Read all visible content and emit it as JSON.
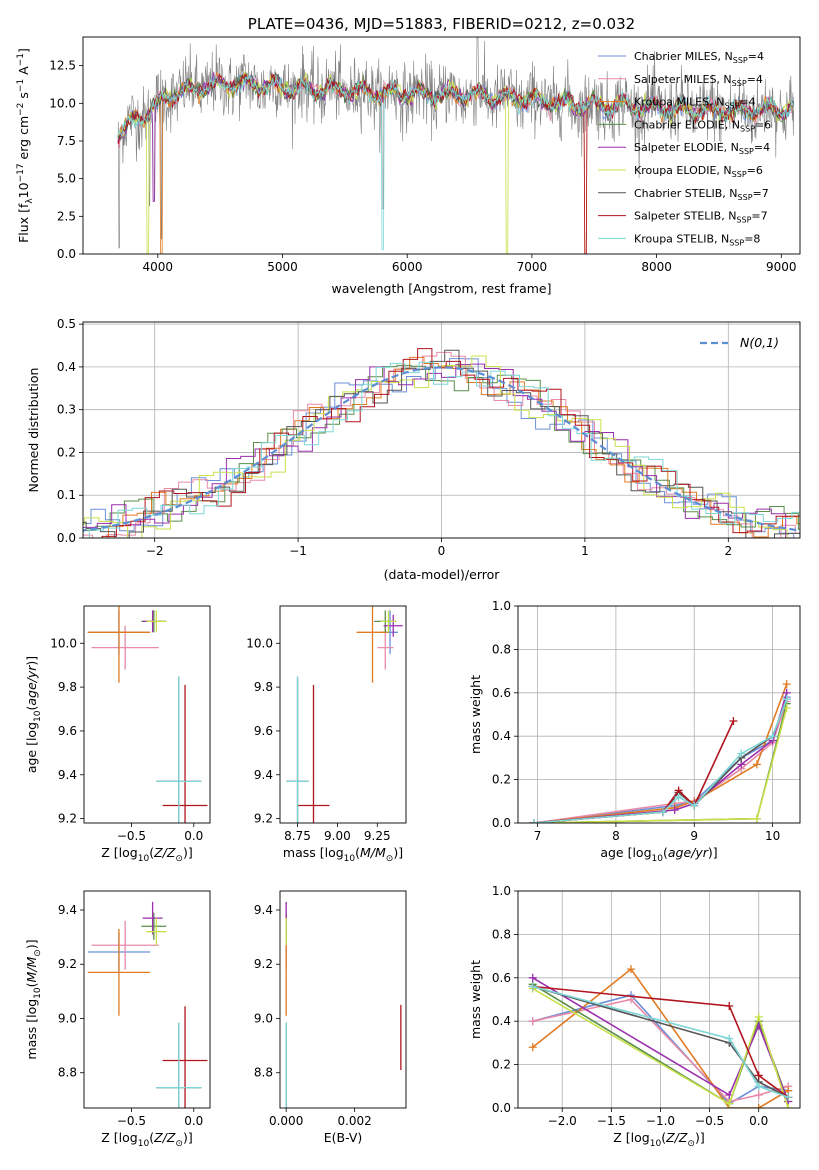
{
  "colors": {
    "chabrier_miles": "#6c8fd8",
    "salpeter_miles": "#e88aa8",
    "kroupa_miles": "#e07b22",
    "chabrier_elodie": "#5a8f4a",
    "salpeter_elodie": "#9b2fae",
    "kroupa_elodie": "#c8e04a",
    "chabrier_stelib": "#555555",
    "salpeter_stelib": "#b0141e",
    "kroupa_stelib": "#7fd6d6",
    "data": "#808080",
    "gauss": "#5b8fd4"
  },
  "models": [
    {
      "key": "chabrier_miles",
      "label": "Chabrier MILES, N",
      "nssp": "=4"
    },
    {
      "key": "salpeter_miles",
      "label": "Salpeter MILES, N",
      "nssp": "=4"
    },
    {
      "key": "kroupa_miles",
      "label": "Kroupa MILES, N",
      "nssp": "=4"
    },
    {
      "key": "chabrier_elodie",
      "label": "Chabrier ELODIE, N",
      "nssp": "=6"
    },
    {
      "key": "salpeter_elodie",
      "label": "Salpeter ELODIE, N",
      "nssp": "=4"
    },
    {
      "key": "kroupa_elodie",
      "label": "Kroupa ELODIE, N",
      "nssp": "=6"
    },
    {
      "key": "chabrier_stelib",
      "label": "Chabrier STELIB, N",
      "nssp": "=7"
    },
    {
      "key": "salpeter_stelib",
      "label": "Salpeter STELIB, N",
      "nssp": "=7"
    },
    {
      "key": "kroupa_stelib",
      "label": "Kroupa STELIB, N",
      "nssp": "=8"
    }
  ],
  "chart_data": [
    {
      "id": "spectrum",
      "type": "line",
      "title": "PLATE=0436, MJD=51883, FIBERID=0212, z=0.032",
      "xlabel": "wavelength [Angstrom, rest frame]",
      "ylabel": "Flux [f",
      "xlim": [
        3400,
        9150
      ],
      "ylim": [
        0,
        14.4
      ],
      "xticks": [
        4000,
        5000,
        6000,
        7000,
        8000,
        9000
      ],
      "yticks": [
        0.0,
        2.5,
        5.0,
        7.5,
        10.0,
        12.5
      ],
      "continuum": [
        [
          3680,
          8.0
        ],
        [
          3800,
          8.8
        ],
        [
          3950,
          9.6
        ],
        [
          4100,
          10.6
        ],
        [
          4300,
          11.0
        ],
        [
          4600,
          11.3
        ],
        [
          5000,
          11.1
        ],
        [
          5400,
          10.9
        ],
        [
          5800,
          10.7
        ],
        [
          6200,
          10.6
        ],
        [
          6600,
          10.5
        ],
        [
          7000,
          10.2
        ],
        [
          7400,
          9.9
        ],
        [
          7800,
          9.8
        ],
        [
          8200,
          9.6
        ],
        [
          8600,
          9.5
        ],
        [
          9000,
          9.6
        ],
        [
          9100,
          9.7
        ]
      ],
      "dips": [
        [
          3934,
          3.2
        ],
        [
          3968,
          3.5
        ],
        [
          4030,
          0.0
        ],
        [
          3920,
          0.0
        ],
        [
          5805,
          0.3
        ],
        [
          6800,
          0.0
        ],
        [
          7430,
          0.0
        ]
      ],
      "grid": false,
      "legend": "top-right"
    },
    {
      "id": "residuals",
      "type": "histogram",
      "xlabel": "(data-model)/error",
      "ylabel": "Normed distribution",
      "xlim": [
        -2.5,
        2.5
      ],
      "ylim": [
        0,
        0.505
      ],
      "xticks": [
        -2,
        -1,
        0,
        1,
        2
      ],
      "yticks": [
        0.0,
        0.1,
        0.2,
        0.3,
        0.4,
        0.5
      ],
      "bin_width": 0.1,
      "legend_entry": "N(0,1)",
      "grid": true
    },
    {
      "id": "age_vs_Z",
      "type": "errorbar",
      "xlabel": "Z [log",
      "ylabel": "age  [log",
      "xlim": [
        -0.88,
        0.13
      ],
      "ylim": [
        9.18,
        10.17
      ],
      "xticks": [
        -0.5,
        0.0
      ],
      "yticks": [
        9.2,
        9.4,
        9.6,
        9.8,
        10.0
      ],
      "points": [
        {
          "key": "chabrier_miles",
          "x": -0.6,
          "y": 10.05,
          "xerr": 0.25,
          "yerr": 0.1
        },
        {
          "key": "salpeter_miles",
          "x": -0.55,
          "y": 9.98,
          "xerr": 0.27,
          "yerr": 0.1
        },
        {
          "key": "kroupa_miles",
          "x": -0.6,
          "y": 10.05,
          "xerr": 0.25,
          "yerr": 0.23
        },
        {
          "key": "chabrier_elodie",
          "x": -0.32,
          "y": 10.1,
          "xerr": 0.1,
          "yerr": 0.05
        },
        {
          "key": "salpeter_elodie",
          "x": -0.33,
          "y": 10.1,
          "xerr": 0.08,
          "yerr": 0.05
        },
        {
          "key": "kroupa_elodie",
          "x": -0.3,
          "y": 10.1,
          "xerr": 0.08,
          "yerr": 0.05
        },
        {
          "key": "chabrier_stelib",
          "x": -0.12,
          "y": 9.37,
          "xerr": 0.18,
          "yerr": 0.47
        },
        {
          "key": "salpeter_stelib",
          "x": -0.07,
          "y": 9.26,
          "xerr": 0.18,
          "yerr": 0.55
        },
        {
          "key": "kroupa_stelib",
          "x": -0.12,
          "y": 9.37,
          "xerr": 0.18,
          "yerr": 0.48
        }
      ]
    },
    {
      "id": "age_vs_mass",
      "type": "errorbar",
      "xlabel": "mass [log",
      "ylabel": "",
      "xlim": [
        8.64,
        9.43
      ],
      "ylim": [
        9.18,
        10.17
      ],
      "xticks": [
        8.75,
        9.0,
        9.25
      ],
      "yticks": [
        9.2,
        9.4,
        9.6,
        9.8,
        10.0
      ],
      "points": [
        {
          "key": "chabrier_miles",
          "x": 9.33,
          "y": 10.05,
          "xerr": 0.05,
          "yerr": 0.1
        },
        {
          "key": "salpeter_miles",
          "x": 9.3,
          "y": 9.98,
          "xerr": 0.05,
          "yerr": 0.1
        },
        {
          "key": "kroupa_miles",
          "x": 9.22,
          "y": 10.05,
          "xerr": 0.1,
          "yerr": 0.23
        },
        {
          "key": "chabrier_elodie",
          "x": 9.3,
          "y": 10.1,
          "xerr": 0.07,
          "yerr": 0.05
        },
        {
          "key": "salpeter_elodie",
          "x": 9.35,
          "y": 10.08,
          "xerr": 0.06,
          "yerr": 0.05
        },
        {
          "key": "kroupa_elodie",
          "x": 9.32,
          "y": 10.1,
          "xerr": 0.05,
          "yerr": 0.05
        },
        {
          "key": "chabrier_stelib",
          "x": 8.75,
          "y": 9.37,
          "xerr": 0.07,
          "yerr": 0.47
        },
        {
          "key": "salpeter_stelib",
          "x": 8.85,
          "y": 9.26,
          "xerr": 0.1,
          "yerr": 0.55
        },
        {
          "key": "kroupa_stelib",
          "x": 8.75,
          "y": 9.37,
          "xerr": 0.07,
          "yerr": 0.48
        }
      ]
    },
    {
      "id": "massweight_vs_age",
      "type": "line",
      "xlabel": "age  [log",
      "ylabel": "mass weight",
      "xlim": [
        6.75,
        10.35
      ],
      "ylim": [
        0,
        1.0
      ],
      "xticks": [
        7,
        8,
        9,
        10
      ],
      "yticks": [
        0.0,
        0.2,
        0.4,
        0.6,
        0.8,
        1.0
      ],
      "grid": true,
      "series": [
        {
          "key": "chabrier_miles",
          "x": [
            6.95,
            8.75,
            9.0,
            9.6,
            10.0,
            10.18
          ],
          "y": [
            0.0,
            0.08,
            0.1,
            0.3,
            0.38,
            0.58
          ]
        },
        {
          "key": "salpeter_miles",
          "x": [
            6.95,
            8.75,
            9.0,
            9.6,
            10.0,
            10.18
          ],
          "y": [
            0.0,
            0.09,
            0.1,
            0.25,
            0.37,
            0.56
          ]
        },
        {
          "key": "kroupa_miles",
          "x": [
            6.95,
            8.75,
            9.0,
            9.8,
            10.18
          ],
          "y": [
            0.0,
            0.07,
            0.1,
            0.27,
            0.64
          ]
        },
        {
          "key": "chabrier_elodie",
          "x": [
            6.95,
            9.8,
            10.18
          ],
          "y": [
            0.0,
            0.02,
            0.55
          ]
        },
        {
          "key": "salpeter_elodie",
          "x": [
            6.95,
            8.75,
            9.0,
            9.6,
            10.0,
            10.18
          ],
          "y": [
            0.0,
            0.06,
            0.09,
            0.27,
            0.38,
            0.6
          ]
        },
        {
          "key": "kroupa_elodie",
          "x": [
            6.95,
            9.8,
            10.18
          ],
          "y": [
            0.0,
            0.02,
            0.53
          ]
        },
        {
          "key": "chabrier_stelib",
          "x": [
            6.95,
            8.6,
            8.8,
            9.0,
            9.6,
            10.0,
            10.18
          ],
          "y": [
            0.0,
            0.05,
            0.14,
            0.08,
            0.3,
            0.4,
            0.57
          ]
        },
        {
          "key": "salpeter_stelib",
          "x": [
            6.95,
            8.6,
            8.8,
            9.0,
            9.5
          ],
          "y": [
            0.0,
            0.05,
            0.15,
            0.08,
            0.47
          ]
        },
        {
          "key": "kroupa_stelib",
          "x": [
            6.95,
            8.6,
            8.8,
            9.0,
            9.6,
            10.0,
            10.18
          ],
          "y": [
            0.0,
            0.05,
            0.12,
            0.08,
            0.32,
            0.4,
            0.57
          ]
        }
      ]
    },
    {
      "id": "mass_vs_Z",
      "type": "errorbar",
      "xlabel": "Z [log",
      "ylabel": "mass [log",
      "xlim": [
        -0.88,
        0.13
      ],
      "ylim": [
        8.67,
        9.47
      ],
      "xticks": [
        -0.5,
        0.0
      ],
      "yticks": [
        8.8,
        9.0,
        9.2,
        9.4
      ],
      "points": [
        {
          "key": "chabrier_miles",
          "x": -0.6,
          "y": 9.245,
          "xerr": 0.25,
          "yerr": 0.07
        },
        {
          "key": "salpeter_miles",
          "x": -0.55,
          "y": 9.27,
          "xerr": 0.27,
          "yerr": 0.09
        },
        {
          "key": "kroupa_miles",
          "x": -0.6,
          "y": 9.17,
          "xerr": 0.25,
          "yerr": 0.16
        },
        {
          "key": "chabrier_elodie",
          "x": -0.32,
          "y": 9.34,
          "xerr": 0.1,
          "yerr": 0.05
        },
        {
          "key": "salpeter_elodie",
          "x": -0.33,
          "y": 9.37,
          "xerr": 0.08,
          "yerr": 0.06
        },
        {
          "key": "kroupa_elodie",
          "x": -0.3,
          "y": 9.32,
          "xerr": 0.08,
          "yerr": 0.05
        },
        {
          "key": "chabrier_stelib",
          "x": -0.12,
          "y": 8.745,
          "xerr": 0.18,
          "yerr": 0.24
        },
        {
          "key": "salpeter_stelib",
          "x": -0.07,
          "y": 8.845,
          "xerr": 0.18,
          "yerr": 0.2
        },
        {
          "key": "kroupa_stelib",
          "x": -0.12,
          "y": 8.745,
          "xerr": 0.18,
          "yerr": 0.24
        }
      ]
    },
    {
      "id": "mass_vs_ebv",
      "type": "errorbar",
      "xlabel": "E(B-V)",
      "ylabel": "",
      "xlim": [
        -0.00018,
        0.0035
      ],
      "ylim": [
        8.67,
        9.47
      ],
      "xticks": [
        0.0,
        0.002
      ],
      "yticks": [
        8.8,
        9.0,
        9.2,
        9.4
      ],
      "points": [
        {
          "key": "chabrier_miles",
          "x": 0.0,
          "y": 9.25,
          "xerr": 0,
          "yerr": 0.07
        },
        {
          "key": "salpeter_miles",
          "x": 0.0,
          "y": 9.27,
          "xerr": 0,
          "yerr": 0.09
        },
        {
          "key": "kroupa_miles",
          "x": 0.0,
          "y": 9.17,
          "xerr": 0,
          "yerr": 0.16
        },
        {
          "key": "chabrier_elodie",
          "x": 0.0,
          "y": 9.34,
          "xerr": 0,
          "yerr": 0.05
        },
        {
          "key": "salpeter_elodie",
          "x": 0.0,
          "y": 9.37,
          "xerr": 0,
          "yerr": 0.06
        },
        {
          "key": "kroupa_elodie",
          "x": 0.0,
          "y": 9.32,
          "xerr": 0,
          "yerr": 0.05
        },
        {
          "key": "chabrier_stelib",
          "x": 0.0,
          "y": 8.745,
          "xerr": 0,
          "yerr": 0.24
        },
        {
          "key": "salpeter_stelib",
          "x": 0.00335,
          "y": 8.93,
          "xerr": 0,
          "yerr": 0.12
        },
        {
          "key": "kroupa_stelib",
          "x": 0.0,
          "y": 8.745,
          "xerr": 0,
          "yerr": 0.24
        }
      ]
    },
    {
      "id": "massweight_vs_Z",
      "type": "line",
      "xlabel": "Z [log",
      "ylabel": "mass weight",
      "xlim": [
        -2.45,
        0.42
      ],
      "ylim": [
        0,
        1.0
      ],
      "xticks": [
        -2.0,
        -1.5,
        -1.0,
        -0.5,
        0.0
      ],
      "yticks": [
        0.0,
        0.2,
        0.4,
        0.6,
        0.8,
        1.0
      ],
      "grid": true,
      "series": [
        {
          "key": "chabrier_miles",
          "x": [
            -2.3,
            -1.3,
            -0.3,
            0.0,
            0.3
          ],
          "y": [
            0.4,
            0.52,
            0.02,
            0.1,
            0.08
          ]
        },
        {
          "key": "salpeter_miles",
          "x": [
            -2.3,
            -1.3,
            -0.3,
            0.0,
            0.3
          ],
          "y": [
            0.4,
            0.5,
            0.03,
            0.06,
            0.1
          ]
        },
        {
          "key": "kroupa_miles",
          "x": [
            -2.3,
            -1.3,
            -0.3,
            0.0,
            0.3
          ],
          "y": [
            0.28,
            0.64,
            0.0,
            0.0,
            0.08
          ]
        },
        {
          "key": "chabrier_elodie",
          "x": [
            -2.3,
            -0.3,
            0.0,
            0.3
          ],
          "y": [
            0.57,
            0.02,
            0.4,
            0.03
          ]
        },
        {
          "key": "salpeter_elodie",
          "x": [
            -2.3,
            -0.3,
            0.0,
            0.3
          ],
          "y": [
            0.6,
            0.06,
            0.38,
            0.03
          ]
        },
        {
          "key": "kroupa_elodie",
          "x": [
            -2.3,
            -0.3,
            0.0,
            0.3
          ],
          "y": [
            0.55,
            0.02,
            0.42,
            0.0
          ]
        },
        {
          "key": "chabrier_stelib",
          "x": [
            -2.3,
            -0.3,
            0.0,
            0.3
          ],
          "y": [
            0.56,
            0.3,
            0.12,
            0.05
          ]
        },
        {
          "key": "salpeter_stelib",
          "x": [
            -2.3,
            -0.3,
            0.0,
            0.3
          ],
          "y": [
            0.56,
            0.47,
            0.15,
            0.05
          ]
        },
        {
          "key": "kroupa_stelib",
          "x": [
            -2.3,
            -0.3,
            0.0,
            0.3
          ],
          "y": [
            0.56,
            0.32,
            0.1,
            0.05
          ]
        }
      ]
    }
  ]
}
